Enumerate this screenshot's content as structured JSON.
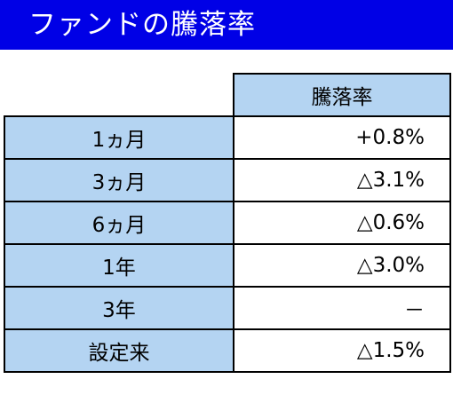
{
  "title": "ファンドの騰落率",
  "table": {
    "column_header": "騰落率",
    "rows": [
      {
        "label": "1ヵ月",
        "value": "+0.8%"
      },
      {
        "label": "3ヵ月",
        "value": "△3.1%"
      },
      {
        "label": "6ヵ月",
        "value": "△0.6%"
      },
      {
        "label": "1年",
        "value": "△3.0%"
      },
      {
        "label": "3年",
        "value": "－"
      },
      {
        "label": "設定来",
        "value": "△1.5%"
      }
    ]
  },
  "colors": {
    "title_background": "#0000e6",
    "title_text": "#ffffff",
    "header_cell": "#b4d4f2",
    "border": "#000000"
  }
}
